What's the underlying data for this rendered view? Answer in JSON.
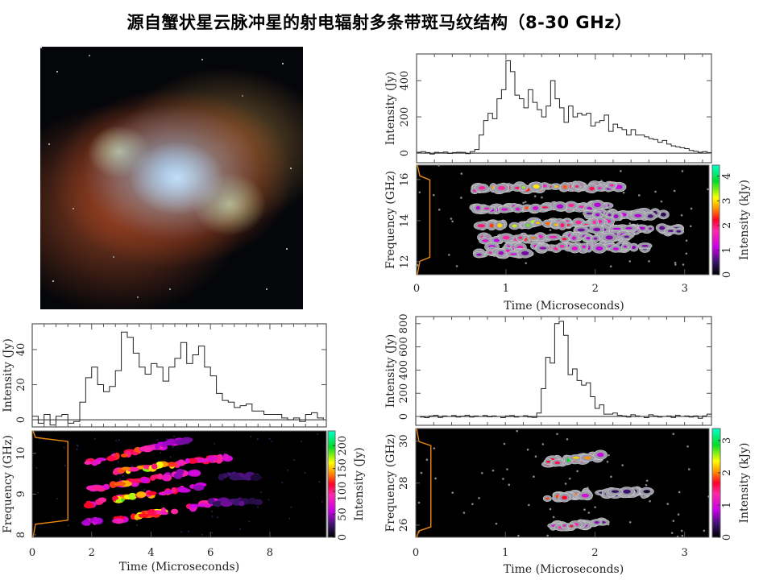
{
  "title": "源自蟹状星云脉冲星的射电辐射多条带斑马纹结构（8-30 GHz）",
  "image": {
    "label": "Crab Nebula"
  },
  "chart_data": [
    {
      "id": "top-right",
      "type": "line",
      "xlabel": "Time (Microseconds)",
      "xlim": [
        0,
        3.3
      ],
      "xticks": [
        0,
        1,
        2,
        3
      ],
      "profile": {
        "ylabel": "Intensity (Jy)",
        "ylim": [
          -53,
          547
        ],
        "yticks": [
          0,
          200,
          400
        ],
        "x_step": 0.05,
        "values": [
          5,
          8,
          3,
          -5,
          4,
          2,
          6,
          -2,
          3,
          5,
          4,
          -3,
          8,
          20,
          100,
          180,
          220,
          190,
          300,
          350,
          510,
          450,
          320,
          300,
          250,
          350,
          280,
          240,
          200,
          260,
          400,
          300,
          250,
          170,
          260,
          200,
          220,
          210,
          220,
          150,
          170,
          180,
          210,
          120,
          160,
          140,
          130,
          100,
          130,
          100,
          100,
          90,
          80,
          75,
          60,
          70,
          50,
          40,
          35,
          30,
          25,
          15,
          10,
          5,
          8,
          3
        ]
      },
      "heatmap": {
        "type": "heatmap",
        "ylabel": "Frequency (GHz)",
        "ylim": [
          11.37,
          16.7
        ],
        "yticks": [
          12,
          14,
          16
        ],
        "colorbar_label": "Intensity (kJy)",
        "colorbar_lim": [
          0,
          4.45
        ],
        "colorbar_ticks": [
          0,
          1,
          2,
          3,
          4
        ],
        "contours": true,
        "bands": [
          {
            "t0": 0.65,
            "t1": 2.3,
            "f0": 15.55,
            "f1": 15.65,
            "peak": 0.75
          },
          {
            "t0": 0.65,
            "t1": 2.2,
            "f0": 14.55,
            "f1": 14.7,
            "peak": 0.6
          },
          {
            "t0": 1.9,
            "t1": 2.8,
            "f0": 14.3,
            "f1": 14.3,
            "peak": 0.3
          },
          {
            "t0": 0.7,
            "t1": 2.2,
            "f0": 13.8,
            "f1": 13.9,
            "peak": 0.8
          },
          {
            "t0": 1.8,
            "t1": 3.0,
            "f0": 13.55,
            "f1": 13.55,
            "peak": 0.3
          },
          {
            "t0": 0.75,
            "t1": 2.4,
            "f0": 13.1,
            "f1": 13.25,
            "peak": 0.6
          },
          {
            "t0": 0.85,
            "t1": 2.65,
            "f0": 12.7,
            "f1": 12.7,
            "peak": 0.4
          },
          {
            "t0": 0.7,
            "t1": 1.3,
            "f0": 12.4,
            "f1": 12.45,
            "peak": 0.4
          }
        ],
        "bandpass": {
          "low": 12.1,
          "high": 16.1,
          "level": 0.15
        }
      }
    },
    {
      "id": "bottom-left",
      "type": "line",
      "xlabel": "Time (Microseconds)",
      "xlim": [
        0,
        9.9
      ],
      "xticks": [
        0,
        2,
        4,
        6,
        8
      ],
      "profile": {
        "ylabel": "Intensity (Jy)",
        "ylim": [
          -4.1,
          54.7
        ],
        "yticks": [
          0,
          20,
          40
        ],
        "x_step": 0.2,
        "values": [
          2,
          -2,
          3,
          -3,
          2,
          3,
          -2,
          -1,
          10,
          24,
          30,
          20,
          16,
          19,
          28,
          50,
          47,
          38,
          30,
          26,
          32,
          30,
          22,
          30,
          35,
          44,
          32,
          37,
          42,
          30,
          25,
          15,
          11,
          10,
          7,
          8,
          9,
          5,
          5,
          3,
          3,
          3,
          1,
          0,
          1,
          -1,
          3,
          4,
          1,
          0
        ]
      },
      "heatmap": {
        "type": "heatmap",
        "ylabel": "Frequency (GHz)",
        "ylim": [
          7.94,
          10.55
        ],
        "yticks": [
          8,
          9,
          10
        ],
        "colorbar_label": "Intensity (Jy)",
        "colorbar_lim": [
          0,
          232
        ],
        "colorbar_ticks": [
          0,
          50,
          100,
          150,
          200
        ],
        "contours": false,
        "bands": [
          {
            "t0": 1.8,
            "t1": 5.3,
            "f0": 9.75,
            "f1": 10.35,
            "peak": 0.6
          },
          {
            "t0": 2.8,
            "t1": 6.6,
            "f0": 9.55,
            "f1": 9.9,
            "peak": 0.8
          },
          {
            "t0": 1.8,
            "t1": 5.8,
            "f0": 9.1,
            "f1": 9.6,
            "peak": 0.6
          },
          {
            "t0": 1.8,
            "t1": 5.8,
            "f0": 8.75,
            "f1": 9.2,
            "peak": 0.8
          },
          {
            "t0": 2.7,
            "t1": 6.3,
            "f0": 8.35,
            "f1": 8.8,
            "peak": 0.7
          },
          {
            "t0": 1.8,
            "t1": 2.3,
            "f0": 8.3,
            "f1": 8.35,
            "peak": 0.4
          },
          {
            "t0": 6.2,
            "t1": 7.7,
            "f0": 9.45,
            "f1": 9.45,
            "peak": 0.2
          },
          {
            "t0": 6.0,
            "t1": 7.6,
            "f0": 8.8,
            "f1": 8.8,
            "peak": 0.2
          }
        ],
        "bandpass": {
          "low": 8.3,
          "high": 10.35,
          "level": 1.2
        }
      }
    },
    {
      "id": "bottom-right",
      "type": "line",
      "xlabel": "Time (Microseconds)",
      "xlim": [
        0,
        3.3
      ],
      "xticks": [
        0,
        1,
        2,
        3
      ],
      "profile": {
        "ylabel": "Intensity (Jy)",
        "ylim": [
          -76,
          861
        ],
        "yticks": [
          0,
          200,
          400,
          600,
          800
        ],
        "x_step": 0.05,
        "values": [
          0,
          -5,
          -10,
          5,
          10,
          -8,
          5,
          0,
          8,
          -5,
          3,
          10,
          -5,
          5,
          0,
          8,
          -3,
          5,
          0,
          -10,
          5,
          8,
          -5,
          0,
          6,
          -5,
          -8,
          30,
          240,
          510,
          460,
          800,
          820,
          700,
          360,
          410,
          310,
          270,
          290,
          170,
          70,
          100,
          20,
          20,
          30,
          10,
          5,
          -5,
          15,
          5,
          0,
          -10,
          15,
          5,
          -5,
          0,
          5,
          -8,
          10,
          0,
          5,
          -5,
          5,
          -15,
          5,
          20
        ]
      },
      "heatmap": {
        "type": "heatmap",
        "ylabel": "Frequency (GHz)",
        "ylim": [
          25.42,
          30.6
        ],
        "yticks": [
          26,
          28,
          30
        ],
        "colorbar_label": "Intensity (kJy)",
        "colorbar_lim": [
          0,
          3.37
        ],
        "colorbar_ticks": [
          0,
          1,
          2,
          3
        ],
        "contours": true,
        "bands": [
          {
            "t0": 1.45,
            "t1": 2.1,
            "f0": 28.95,
            "f1": 29.3,
            "peak": 0.95
          },
          {
            "t0": 1.48,
            "t1": 1.95,
            "f0": 27.3,
            "f1": 27.5,
            "peak": 0.9
          },
          {
            "t0": 1.5,
            "t1": 2.1,
            "f0": 25.9,
            "f1": 26.1,
            "peak": 0.5
          },
          {
            "t0": 2.1,
            "t1": 2.6,
            "f0": 27.5,
            "f1": 27.55,
            "peak": 0.15
          }
        ],
        "bandpass": {
          "low": 25.8,
          "high": 29.9,
          "level": 0.17
        }
      }
    }
  ]
}
